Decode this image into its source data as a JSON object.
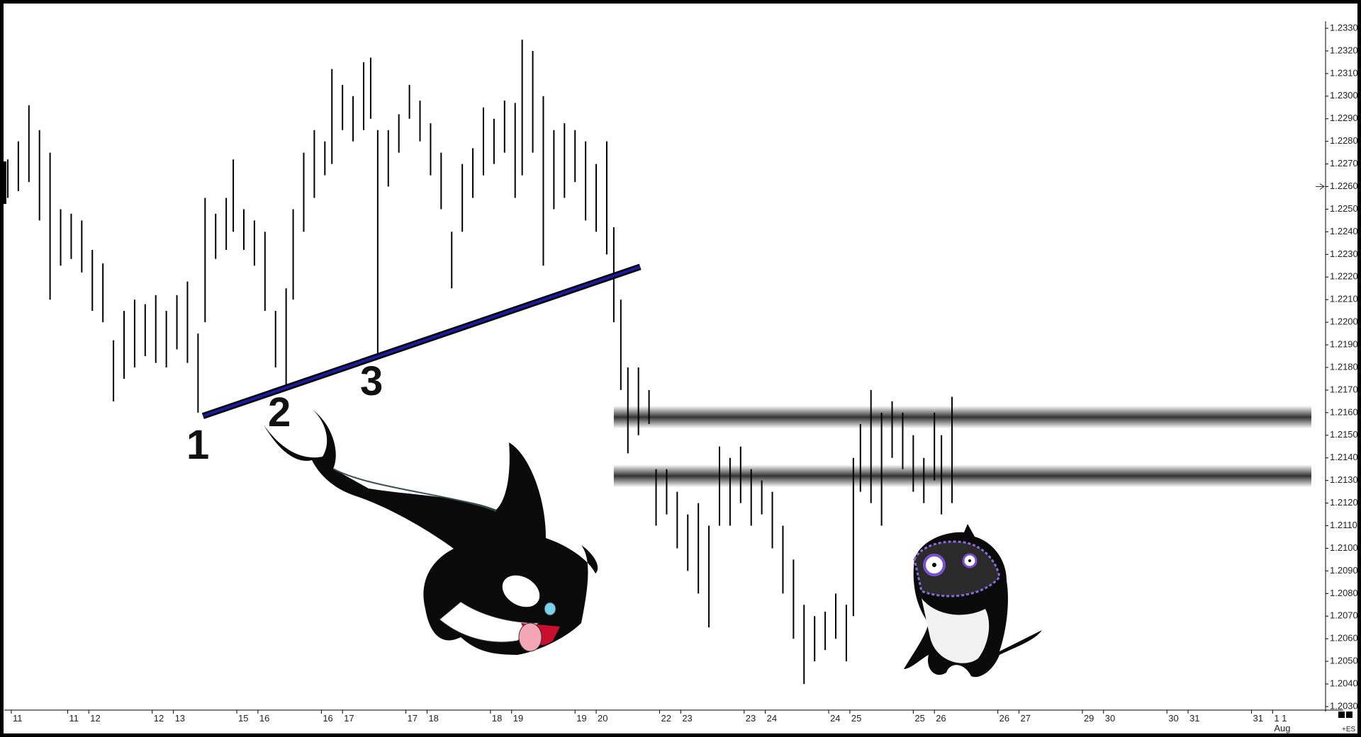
{
  "chart_data": {
    "type": "range-bar",
    "annotations": [
      "1",
      "2",
      "3"
    ],
    "x_note": "Aug",
    "corner_label": "+ES",
    "xlim": [
      0,
      372
    ],
    "ylim": [
      1.203,
      1.233
    ],
    "xticks": [
      {
        "value": 2,
        "label": "11"
      },
      {
        "value": 18,
        "label": "11"
      },
      {
        "value": 24,
        "label": "12"
      },
      {
        "value": 42,
        "label": "12"
      },
      {
        "value": 48,
        "label": "13"
      },
      {
        "value": 66,
        "label": "15"
      },
      {
        "value": 72,
        "label": "16"
      },
      {
        "value": 90,
        "label": "16"
      },
      {
        "value": 96,
        "label": "17"
      },
      {
        "value": 114,
        "label": "17"
      },
      {
        "value": 120,
        "label": "18"
      },
      {
        "value": 138,
        "label": "18"
      },
      {
        "value": 144,
        "label": "19"
      },
      {
        "value": 162,
        "label": "19"
      },
      {
        "value": 168,
        "label": "20"
      },
      {
        "value": 186,
        "label": "22"
      },
      {
        "value": 192,
        "label": "23"
      },
      {
        "value": 210,
        "label": "23"
      },
      {
        "value": 216,
        "label": "24"
      },
      {
        "value": 234,
        "label": "24"
      },
      {
        "value": 240,
        "label": "25"
      },
      {
        "value": 258,
        "label": "25"
      },
      {
        "value": 264,
        "label": "26"
      },
      {
        "value": 282,
        "label": "26"
      },
      {
        "value": 288,
        "label": "27"
      },
      {
        "value": 306,
        "label": "29"
      },
      {
        "value": 312,
        "label": "30"
      },
      {
        "value": 330,
        "label": "30"
      },
      {
        "value": 336,
        "label": "31"
      },
      {
        "value": 354,
        "label": "31"
      },
      {
        "value": 360,
        "label": "1 1"
      }
    ],
    "yticks": [
      {
        "value": 1.203,
        "label": "1.2030"
      },
      {
        "value": 1.204,
        "label": "1.2040"
      },
      {
        "value": 1.205,
        "label": "1.2050"
      },
      {
        "value": 1.206,
        "label": "1.2060"
      },
      {
        "value": 1.207,
        "label": "1.2070"
      },
      {
        "value": 1.208,
        "label": "1.2080"
      },
      {
        "value": 1.209,
        "label": "1.2090"
      },
      {
        "value": 1.21,
        "label": "1.2100"
      },
      {
        "value": 1.211,
        "label": "1.2110"
      },
      {
        "value": 1.212,
        "label": "1.2120"
      },
      {
        "value": 1.213,
        "label": "1.2130"
      },
      {
        "value": 1.214,
        "label": "1.2140"
      },
      {
        "value": 1.215,
        "label": "1.2150"
      },
      {
        "value": 1.216,
        "label": "1.2160"
      },
      {
        "value": 1.217,
        "label": "1.2170"
      },
      {
        "value": 1.218,
        "label": "1.2180"
      },
      {
        "value": 1.219,
        "label": "1.2190"
      },
      {
        "value": 1.22,
        "label": "1.2200"
      },
      {
        "value": 1.221,
        "label": "1.2210"
      },
      {
        "value": 1.222,
        "label": "1.2220"
      },
      {
        "value": 1.223,
        "label": "1.2230"
      },
      {
        "value": 1.224,
        "label": "1.2240"
      },
      {
        "value": 1.225,
        "label": "1.2250"
      },
      {
        "value": 1.226,
        "label": "1.2260"
      },
      {
        "value": 1.227,
        "label": "1.2270"
      },
      {
        "value": 1.228,
        "label": "1.2280"
      },
      {
        "value": 1.229,
        "label": "1.2290"
      },
      {
        "value": 1.23,
        "label": "1.2300"
      },
      {
        "value": 1.231,
        "label": "1.2310"
      },
      {
        "value": 1.232,
        "label": "1.2320"
      },
      {
        "value": 1.233,
        "label": "1.2330"
      }
    ],
    "current_price": 1.226,
    "trendline": {
      "x": [
        56.4,
        180.5
      ],
      "y": [
        1.21585,
        1.22245
      ],
      "color": "#1a1aa0"
    },
    "zones": {
      "x": [
        173,
        371
      ],
      "levels": [
        1.2158,
        1.2132
      ]
    },
    "color": "#000000",
    "x": [
      1,
      4,
      7,
      10,
      13,
      16,
      19,
      22,
      25,
      28,
      31,
      34,
      37,
      40,
      43,
      46,
      49,
      52,
      55,
      57,
      60,
      63,
      65,
      68,
      71,
      74,
      77,
      80,
      82,
      85,
      88,
      91,
      93,
      96,
      99,
      102,
      104,
      106,
      109,
      112,
      115,
      118,
      121,
      124,
      127,
      130,
      133,
      136,
      139,
      142,
      145,
      147,
      150,
      153,
      156,
      159,
      162,
      165,
      168,
      171,
      173,
      175,
      177,
      180,
      183,
      185,
      188,
      191,
      194,
      197,
      200,
      203,
      206,
      209,
      212,
      215,
      218,
      221,
      224,
      227,
      230,
      233,
      236,
      239,
      241,
      243,
      246,
      249,
      252,
      255,
      258,
      261,
      264,
      266,
      269
    ],
    "high": [
      1.2272,
      1.228,
      1.2296,
      1.2285,
      1.2275,
      1.225,
      1.2248,
      1.2245,
      1.2232,
      1.2226,
      1.2192,
      1.2205,
      1.221,
      1.2208,
      1.2212,
      1.2205,
      1.2212,
      1.2218,
      1.2195,
      1.2255,
      1.2248,
      1.2255,
      1.2272,
      1.225,
      1.2245,
      1.224,
      1.2205,
      1.2215,
      1.225,
      1.2275,
      1.2285,
      1.228,
      1.2312,
      1.2305,
      1.23,
      1.2315,
      1.2317,
      1.2285,
      1.2285,
      1.2292,
      1.2305,
      1.2298,
      1.2288,
      1.2275,
      1.224,
      1.227,
      1.2277,
      1.2295,
      1.229,
      1.2298,
      1.2297,
      1.2325,
      1.232,
      1.23,
      1.2285,
      1.2288,
      1.2285,
      1.228,
      1.227,
      1.228,
      1.2242,
      1.221,
      1.218,
      1.218,
      1.217,
      1.2135,
      1.2135,
      1.2125,
      1.2115,
      1.212,
      1.211,
      1.2145,
      1.214,
      1.2145,
      1.2135,
      1.213,
      1.2125,
      1.211,
      1.2095,
      1.2075,
      1.207,
      1.2072,
      1.208,
      1.2075,
      1.214,
      1.2155,
      1.217,
      1.216,
      1.2165,
      1.216,
      1.215,
      1.214,
      1.216,
      1.215,
      1.2167
    ],
    "low": [
      1.2255,
      1.2258,
      1.2262,
      1.2245,
      1.221,
      1.2225,
      1.2228,
      1.2222,
      1.2205,
      1.22,
      1.2165,
      1.2175,
      1.218,
      1.2185,
      1.2182,
      1.218,
      1.2188,
      1.2182,
      1.216,
      1.22,
      1.2228,
      1.2232,
      1.224,
      1.2232,
      1.2225,
      1.2205,
      1.218,
      1.2172,
      1.221,
      1.224,
      1.2255,
      1.2265,
      1.227,
      1.2285,
      1.228,
      1.2285,
      1.229,
      1.2185,
      1.226,
      1.2275,
      1.229,
      1.228,
      1.2265,
      1.225,
      1.2215,
      1.224,
      1.2255,
      1.2265,
      1.227,
      1.2275,
      1.2255,
      1.2265,
      1.2275,
      1.2225,
      1.225,
      1.2255,
      1.2262,
      1.2245,
      1.224,
      1.223,
      1.22,
      1.217,
      1.2142,
      1.215,
      1.2155,
      1.211,
      1.2115,
      1.21,
      1.209,
      1.208,
      1.2065,
      1.211,
      1.211,
      1.212,
      1.211,
      1.2115,
      1.21,
      1.208,
      1.206,
      1.204,
      1.205,
      1.2055,
      1.206,
      1.205,
      1.207,
      1.2125,
      1.212,
      1.211,
      1.214,
      1.2135,
      1.2125,
      1.212,
      1.213,
      1.2115,
      1.212
    ]
  }
}
